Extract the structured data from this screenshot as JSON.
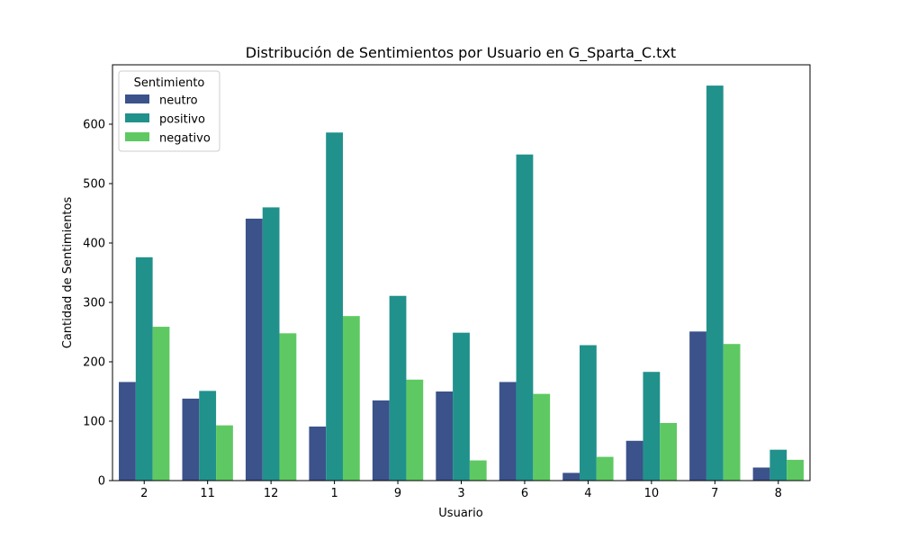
{
  "chart_data": {
    "type": "bar",
    "title": "Distribución de Sentimientos por Usuario en G_Sparta_C.txt",
    "xlabel": "Usuario",
    "ylabel": "Cantidad de Sentimientos",
    "categories": [
      "2",
      "11",
      "12",
      "1",
      "9",
      "3",
      "6",
      "4",
      "10",
      "7",
      "8"
    ],
    "ylim": [
      0,
      700
    ],
    "yticks": [
      "0",
      "100",
      "200",
      "300",
      "400",
      "500",
      "600"
    ],
    "grid": false,
    "legend": {
      "title": "Sentimiento",
      "placement": "top-left"
    },
    "series": [
      {
        "name": "neutro",
        "color": "#3b528b",
        "values": [
          166,
          138,
          441,
          91,
          135,
          150,
          166,
          13,
          67,
          251,
          22
        ]
      },
      {
        "name": "positivo",
        "color": "#21918c",
        "values": [
          376,
          151,
          460,
          586,
          311,
          249,
          549,
          228,
          183,
          665,
          52
        ]
      },
      {
        "name": "negativo",
        "color": "#5ec962",
        "values": [
          259,
          93,
          248,
          277,
          170,
          34,
          146,
          40,
          97,
          230,
          35
        ]
      }
    ]
  }
}
